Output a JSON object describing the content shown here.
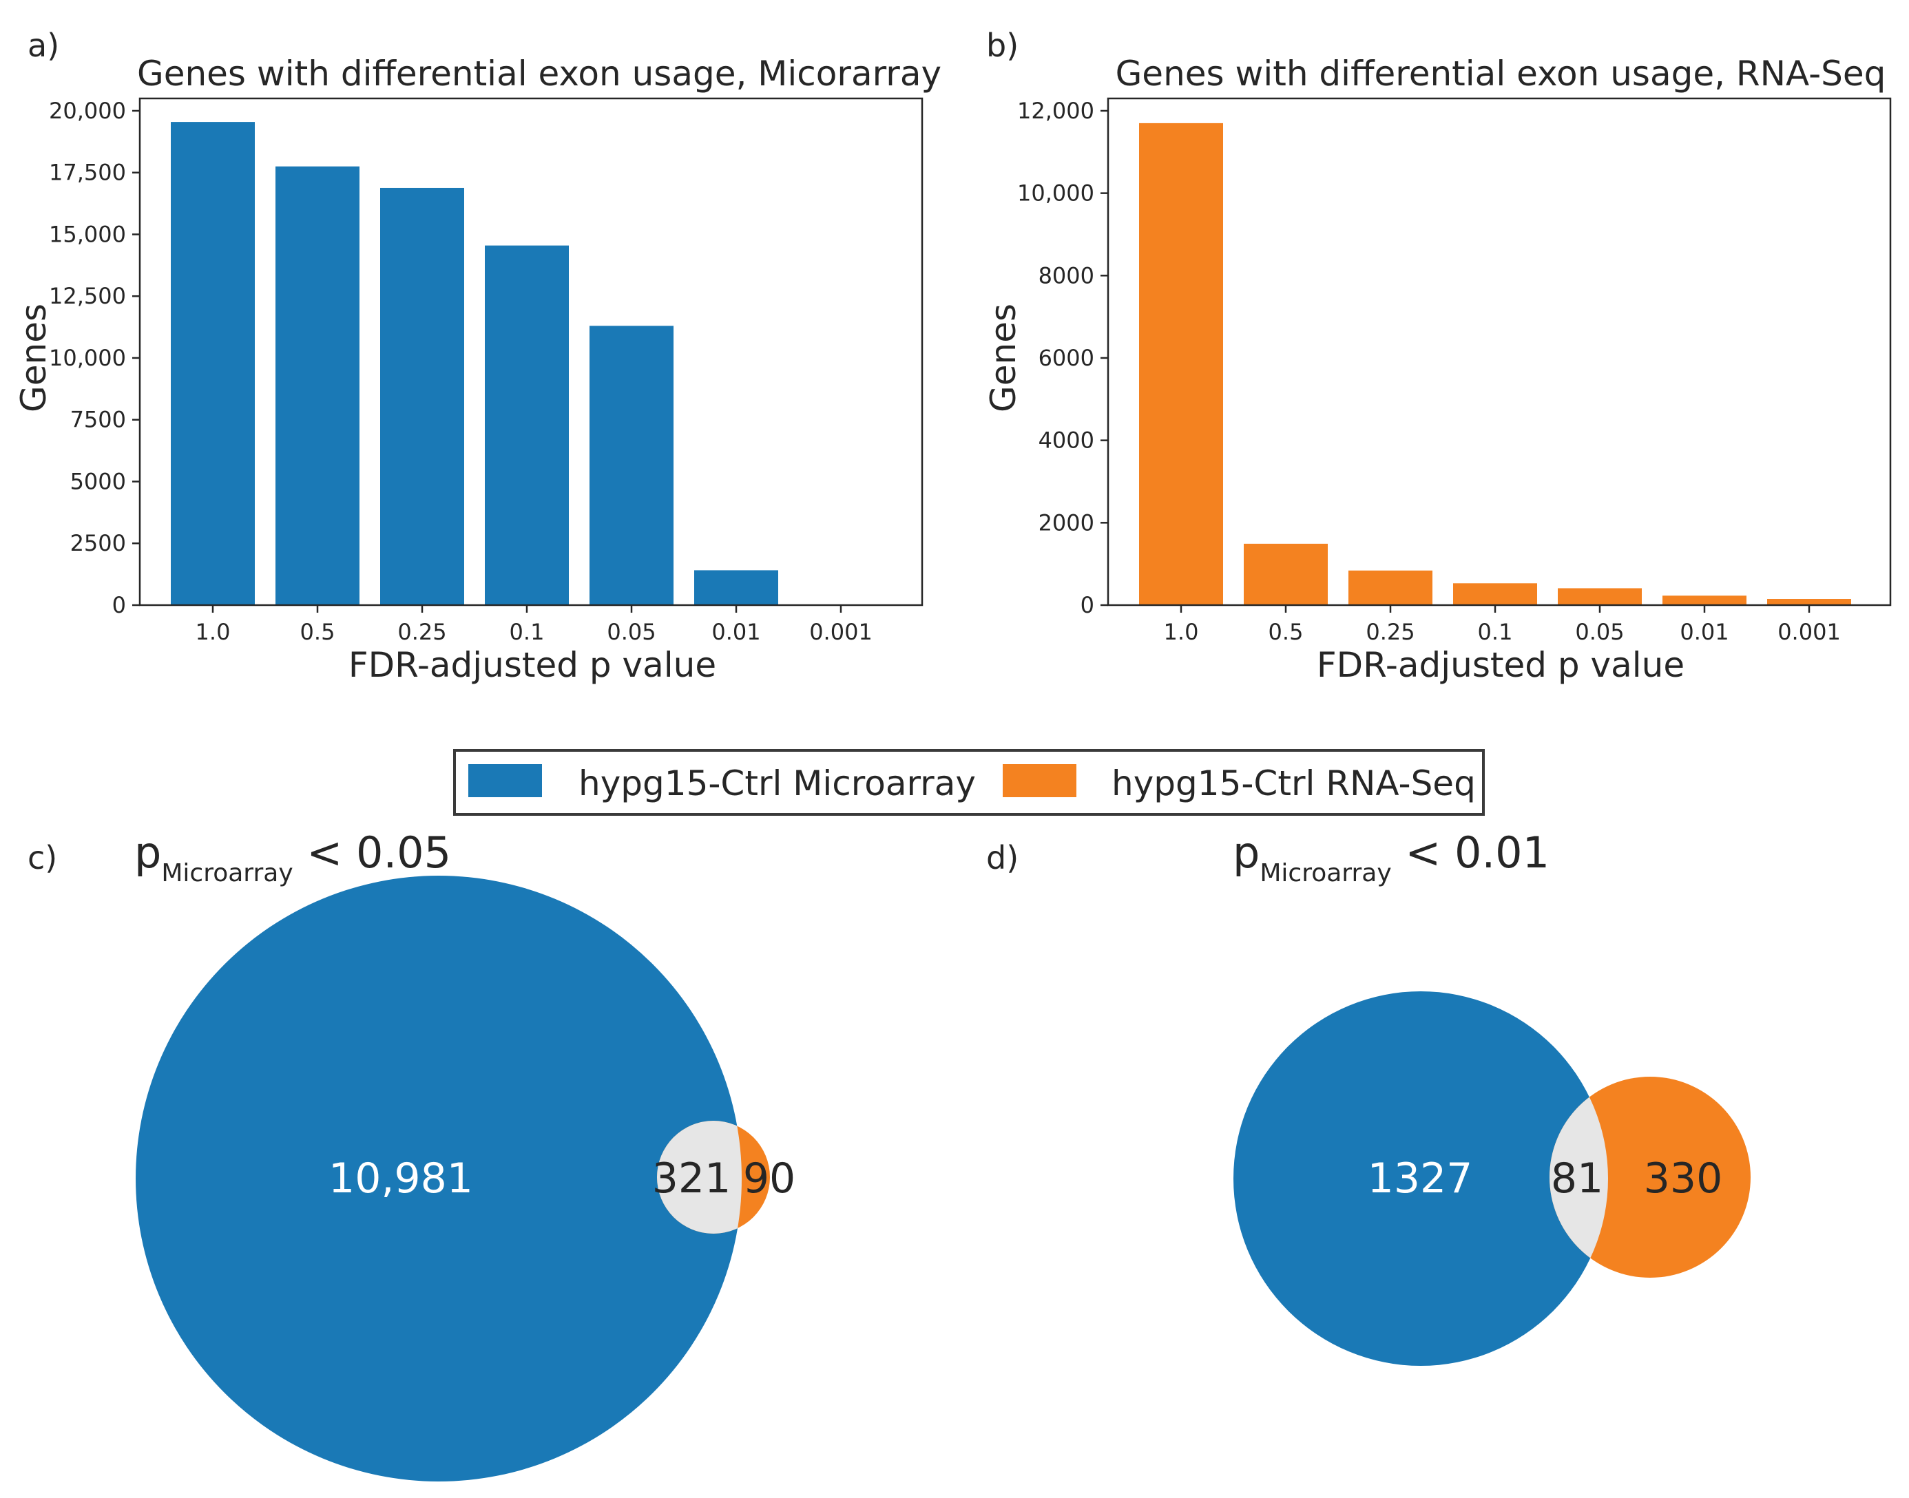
{
  "colors": {
    "microarray": "#1a79b6",
    "rnaseq": "#f48220",
    "overlap": "#e6e6e6",
    "axis": "#262626",
    "text": "#262626",
    "venn_text_on_blue": "#ffffff"
  },
  "chart_data": [
    {
      "type": "bar",
      "panel": "a)",
      "title": "Genes with differential exon usage, Micorarray",
      "xlabel": "FDR-adjusted p value",
      "ylabel": "Genes",
      "categories": [
        "1.0",
        "0.5",
        "0.25",
        "0.1",
        "0.05",
        "0.01",
        "0.001"
      ],
      "series": [
        {
          "values": [
            19550,
            17750,
            16880,
            14550,
            11300,
            1410,
            0
          ]
        }
      ],
      "ylim": [
        0,
        20500
      ],
      "yticks": [
        0,
        2500,
        5000,
        7500,
        10000,
        12500,
        15000,
        17500,
        20000
      ],
      "ytick_labels": [
        "0",
        "2500",
        "5000",
        "7500",
        "10,000",
        "12,500",
        "15,000",
        "17,500",
        "20,000"
      ],
      "color": "#1a79b6",
      "grid": false
    },
    {
      "type": "bar",
      "panel": "b)",
      "title": "Genes with differential exon usage, RNA-Seq",
      "xlabel": "FDR-adjusted p value",
      "ylabel": "Genes",
      "categories": [
        "1.0",
        "0.5",
        "0.25",
        "0.1",
        "0.05",
        "0.01",
        "0.001"
      ],
      "series": [
        {
          "values": [
            11700,
            1490,
            840,
            530,
            410,
            230,
            150
          ]
        }
      ],
      "ylim": [
        0,
        12300
      ],
      "yticks": [
        0,
        2000,
        4000,
        6000,
        8000,
        10000,
        12000
      ],
      "ytick_labels": [
        "0",
        "2000",
        "4000",
        "6000",
        "8000",
        "10,000",
        "12,000"
      ],
      "color": "#f48220",
      "grid": false
    },
    {
      "type": "venn",
      "panel": "c)",
      "title_main": "p",
      "title_sub": "Microarray",
      "title_rest": " < 0.05",
      "sets": [
        "hypg15-Ctrl Microarray",
        "hypg15-Ctrl RNA-Seq"
      ],
      "only_a": "10,981",
      "overlap": "321",
      "only_b": "90"
    },
    {
      "type": "venn",
      "panel": "d)",
      "title_main": "p",
      "title_sub": "Microarray",
      "title_rest": " < 0.01",
      "sets": [
        "hypg15-Ctrl Microarray",
        "hypg15-Ctrl RNA-Seq"
      ],
      "only_a": "1327",
      "overlap": "81",
      "only_b": "330"
    }
  ],
  "legend": {
    "placement": "center",
    "entries": [
      {
        "label": "hypg15-Ctrl Microarray",
        "color": "#1a79b6"
      },
      {
        "label": "hypg15-Ctrl RNA-Seq",
        "color": "#f48220"
      }
    ]
  }
}
